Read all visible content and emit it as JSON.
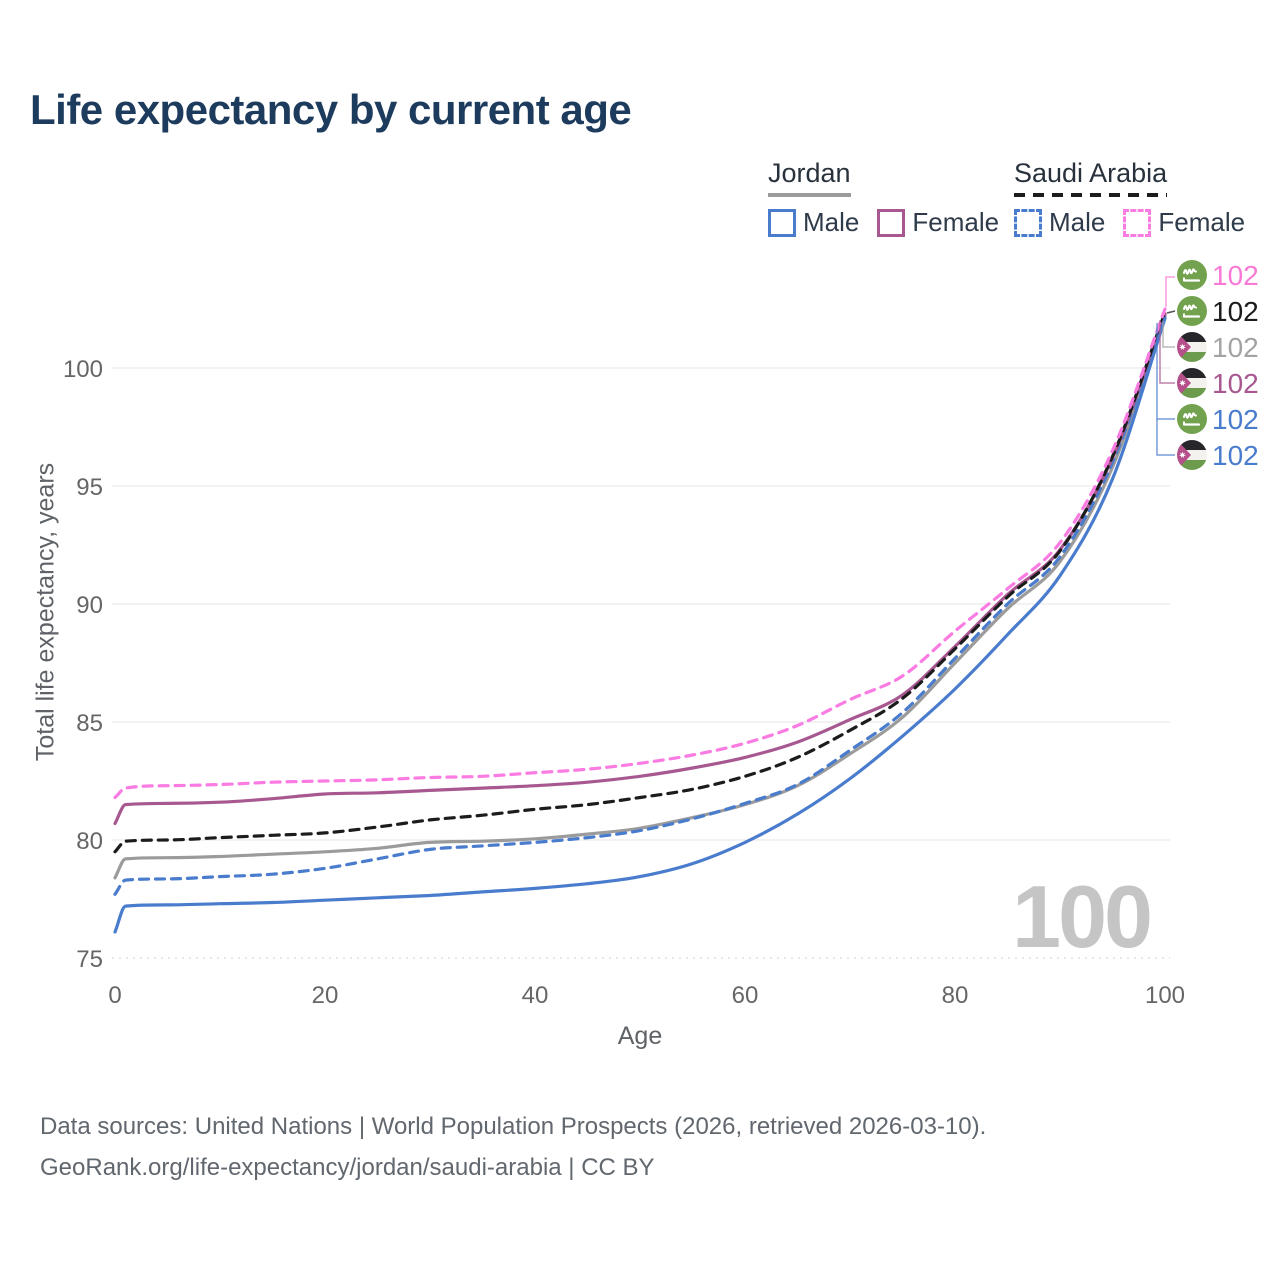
{
  "header": {
    "title": "Life expectancy by current age"
  },
  "legend": {
    "groups": [
      {
        "label": "Jordan",
        "style": "solid",
        "color": "#9b9b9b",
        "items": [
          {
            "label": "Male",
            "color": "#4a7ccd",
            "dash": false
          },
          {
            "label": "Female",
            "color": "#a85890",
            "dash": false
          }
        ]
      },
      {
        "label": "Saudi Arabia",
        "style": "dashed",
        "color": "#1c1c1c",
        "items": [
          {
            "label": "Male",
            "color": "#4a7ccd",
            "dash": true
          },
          {
            "label": "Female",
            "color": "#fa7ce2",
            "dash": true
          }
        ]
      }
    ]
  },
  "chart_data": {
    "type": "line",
    "title": "Life expectancy by current age",
    "xlabel": "Age",
    "ylabel": "Total life expectancy, years",
    "x_ticks": [
      0,
      20,
      40,
      60,
      80,
      100
    ],
    "y_ticks": [
      75,
      80,
      85,
      90,
      95,
      100
    ],
    "xlim": [
      0,
      100
    ],
    "ylim": [
      74.5,
      103
    ],
    "grid": true,
    "legend_position": "top-right",
    "watermark": "100",
    "ages": [
      0,
      1,
      5,
      10,
      15,
      20,
      25,
      30,
      35,
      40,
      45,
      50,
      55,
      60,
      65,
      70,
      75,
      80,
      85,
      90,
      95,
      100
    ],
    "series": [
      {
        "id": "jordan-total",
        "name": "Jordan (both sexes)",
        "color": "#9b9b9b",
        "dash": "solid",
        "values": [
          78.4,
          79.2,
          79.25,
          79.3,
          79.4,
          79.5,
          79.65,
          79.9,
          79.95,
          80.05,
          80.25,
          80.5,
          80.95,
          81.5,
          82.3,
          83.65,
          85.2,
          87.5,
          89.8,
          91.8,
          95.8,
          102.2
        ]
      },
      {
        "id": "saudi-male",
        "name": "Saudi Arabia Male",
        "color": "#4a7ccd",
        "dash": "dashed",
        "values": [
          77.7,
          78.3,
          78.35,
          78.45,
          78.55,
          78.8,
          79.2,
          79.6,
          79.75,
          79.9,
          80.1,
          80.4,
          80.9,
          81.55,
          82.35,
          83.8,
          85.4,
          87.7,
          90.0,
          92.0,
          96.0,
          102.25
        ]
      },
      {
        "id": "jordan-female",
        "name": "Jordan Female",
        "color": "#a85890",
        "dash": "solid",
        "values": [
          80.7,
          81.5,
          81.55,
          81.6,
          81.75,
          81.95,
          82.0,
          82.1,
          82.2,
          82.3,
          82.45,
          82.7,
          83.05,
          83.5,
          84.15,
          85.1,
          86.15,
          88.2,
          90.4,
          92.3,
          96.2,
          102.3
        ]
      },
      {
        "id": "saudi-total",
        "name": "Saudi Arabia (both sexes)",
        "color": "#1c1c1c",
        "dash": "dashed",
        "values": [
          79.5,
          79.95,
          80.0,
          80.1,
          80.2,
          80.3,
          80.55,
          80.85,
          81.05,
          81.3,
          81.5,
          81.8,
          82.15,
          82.7,
          83.5,
          84.65,
          86.0,
          88.1,
          90.3,
          92.25,
          96.25,
          102.35
        ]
      },
      {
        "id": "saudi-female",
        "name": "Saudi Arabia Female",
        "color": "#fa7ce2",
        "dash": "dashed",
        "values": [
          81.8,
          82.2,
          82.3,
          82.35,
          82.45,
          82.5,
          82.55,
          82.65,
          82.7,
          82.85,
          83.0,
          83.25,
          83.6,
          84.1,
          84.85,
          85.95,
          86.95,
          88.85,
          90.65,
          92.6,
          96.5,
          102.5
        ]
      },
      {
        "id": "jordan-male",
        "name": "Jordan Male",
        "color": "#4a7ccd",
        "dash": "solid",
        "values": [
          76.1,
          77.2,
          77.25,
          77.3,
          77.35,
          77.45,
          77.55,
          77.65,
          77.8,
          77.95,
          78.15,
          78.45,
          79.0,
          79.9,
          81.1,
          82.6,
          84.4,
          86.4,
          88.7,
          91.2,
          95.3,
          102.1
        ]
      }
    ],
    "end_labels": [
      {
        "flag": "sa",
        "value": "102",
        "color": "#f97ad6"
      },
      {
        "flag": "sa",
        "value": "102",
        "color": "#1b1b1b"
      },
      {
        "flag": "jo",
        "value": "102",
        "color": "#a3a3a3"
      },
      {
        "flag": "jo",
        "value": "102",
        "color": "#a85890"
      },
      {
        "flag": "sa",
        "value": "102",
        "color": "#4a7ccd"
      },
      {
        "flag": "jo",
        "value": "102",
        "color": "#4a7ccd"
      }
    ],
    "flag_palette": {
      "saudi_green": "#73a24e",
      "jordan_green": "#6d9b4e",
      "jordan_black": "#26262b",
      "jordan_triangle": "#b5508a"
    }
  },
  "footer": {
    "line1": "Data sources: United Nations | World Population Prospects (2026, retrieved 2026-03-10).",
    "line2": "GeoRank.org/life-expectancy/jordan/saudi-arabia | CC BY"
  }
}
